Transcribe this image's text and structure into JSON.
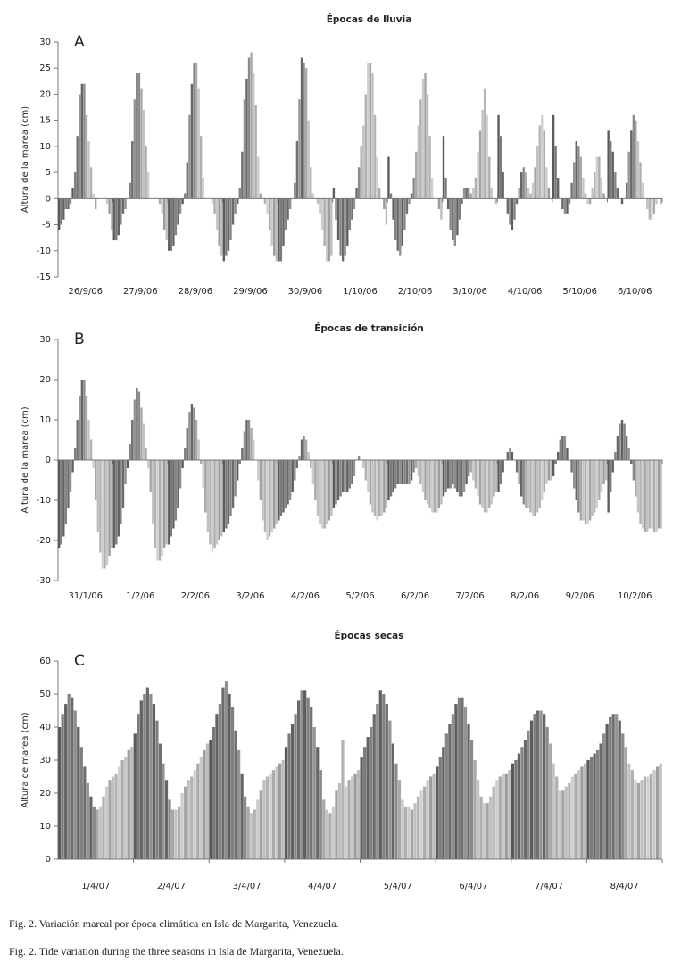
{
  "chart_data": [
    {
      "type": "grouped-bar",
      "title": "Épocas de lluvia",
      "panel_label": "A",
      "y_label": "Altura de la marea   (cm)",
      "categories": [
        "26/9/06",
        "27/9/06",
        "28/9/06",
        "29/9/06",
        "30/9/06",
        "1/10/06",
        "2/10/06",
        "3/10/06",
        "4/10/06",
        "5/10/06",
        "6/10/06"
      ],
      "values": [
        [
          -6,
          -5,
          -4,
          -2,
          -2,
          -1,
          2,
          5,
          12,
          20,
          22,
          22,
          16,
          11,
          6,
          1,
          -2,
          0,
          0,
          0,
          0,
          -1,
          -3,
          -6
        ],
        [
          -8,
          -8,
          -7,
          -5,
          -3,
          -2,
          0,
          3,
          11,
          19,
          24,
          24,
          21,
          17,
          10,
          5,
          0,
          0,
          0,
          0,
          -1,
          -3,
          -6,
          -8
        ],
        [
          -10,
          -10,
          -9,
          -7,
          -5,
          -3,
          -1,
          1,
          7,
          16,
          22,
          26,
          26,
          21,
          12,
          4,
          0,
          0,
          0,
          -1,
          -3,
          -6,
          -9,
          -11
        ],
        [
          -12,
          -11,
          -10,
          -8,
          -5,
          -3,
          -1,
          2,
          9,
          19,
          23,
          27,
          28,
          24,
          18,
          8,
          1,
          0,
          -1,
          -3,
          -6,
          -9,
          -11,
          -12
        ],
        [
          -12,
          -12,
          -9,
          -6,
          -4,
          -2,
          0,
          3,
          11,
          19,
          27,
          26,
          25,
          15,
          6,
          1,
          0,
          -1,
          -3,
          -6,
          -9,
          -12,
          -12,
          -11
        ],
        [
          2,
          -4,
          -8,
          -11,
          -12,
          -11,
          -9,
          -6,
          -4,
          -2,
          2,
          6,
          10,
          14,
          20,
          26,
          26,
          24,
          16,
          8,
          2,
          0,
          -2,
          -5
        ],
        [
          8,
          1,
          -4,
          -8,
          -10,
          -11,
          -9,
          -6,
          -3,
          -1,
          1,
          4,
          9,
          14,
          19,
          23,
          24,
          20,
          12,
          4,
          0,
          0,
          -2,
          -4
        ],
        [
          12,
          4,
          -2,
          -6,
          -8,
          -9,
          -7,
          -4,
          -1,
          2,
          2,
          2,
          1,
          2,
          4,
          9,
          13,
          17,
          21,
          16,
          8,
          2,
          0,
          -1
        ],
        [
          16,
          12,
          5,
          0,
          -3,
          -5,
          -6,
          -4,
          -1,
          2,
          5,
          6,
          5,
          2,
          1,
          3,
          6,
          10,
          14,
          16,
          13,
          6,
          2,
          0
        ],
        [
          16,
          10,
          4,
          0,
          -2,
          -3,
          -3,
          -1,
          3,
          7,
          11,
          10,
          8,
          4,
          1,
          -1,
          -1,
          2,
          5,
          8,
          8,
          4,
          1,
          0
        ],
        [
          13,
          11,
          9,
          5,
          2,
          0,
          -1,
          0,
          3,
          9,
          13,
          16,
          15,
          11,
          7,
          3,
          0,
          -2,
          -4,
          -4,
          -3,
          -1,
          0,
          -1
        ]
      ],
      "ylim": [
        -15,
        30
      ],
      "yticks": [
        -15,
        -10,
        -5,
        0,
        5,
        10,
        15,
        20,
        25,
        30
      ],
      "bar_colors": [
        "#5a5a5a",
        "#7a7a7a",
        "#626262",
        "#848484",
        "#6a6a6a",
        "#8e8e8e",
        "#5e5e5e",
        "#808080",
        "#707070",
        "#949494",
        "#666666",
        "#8a8a8a",
        "#a8a8a8",
        "#c4c4c4",
        "#b0b0b0",
        "#cccccc",
        "#a4a4a4",
        "#c0c0c0",
        "#b4b4b4",
        "#d0d0d0",
        "#acacac",
        "#c8c8c8",
        "#9c9c9c",
        "#bcbcbc"
      ]
    },
    {
      "type": "grouped-bar",
      "title": "Épocas de transición",
      "panel_label": "B",
      "y_label": "Altura de la marea (cm)",
      "categories": [
        "31/1/06",
        "1/2/06",
        "2/2/06",
        "3/2/06",
        "4/2/06",
        "5/2/06",
        "6/2/06",
        "7/2/06",
        "8/2/06",
        "9/2/06",
        "10/2/06"
      ],
      "values": [
        [
          -22,
          -21,
          -19,
          -16,
          -12,
          -8,
          -3,
          3,
          10,
          16,
          20,
          20,
          16,
          10,
          5,
          -2,
          -10,
          -18,
          -23,
          -27,
          -27,
          -26,
          -24,
          -22
        ],
        [
          -22,
          -21,
          -19,
          -16,
          -12,
          -6,
          -2,
          4,
          10,
          15,
          18,
          17,
          13,
          9,
          3,
          -2,
          -8,
          -16,
          -22,
          -25,
          -25,
          -24,
          -22,
          -21
        ],
        [
          -21,
          -19,
          -17,
          -15,
          -12,
          -7,
          -2,
          3,
          8,
          12,
          14,
          13,
          10,
          5,
          -1,
          -7,
          -13,
          -18,
          -21,
          -23,
          -22,
          -21,
          -20,
          -19
        ],
        [
          -18,
          -17,
          -16,
          -14,
          -12,
          -9,
          -5,
          -1,
          3,
          7,
          10,
          10,
          8,
          5,
          0,
          -5,
          -10,
          -15,
          -18,
          -20,
          -19,
          -18,
          -17,
          -16
        ],
        [
          -15,
          -14,
          -13,
          -12,
          -11,
          -10,
          -8,
          -5,
          -2,
          1,
          5,
          6,
          5,
          2,
          -2,
          -6,
          -10,
          -14,
          -16,
          -17,
          -17,
          -16,
          -15,
          -14
        ],
        [
          -12,
          -11,
          -10,
          -9,
          -8,
          -8,
          -8,
          -7,
          -6,
          -4,
          0,
          1,
          0,
          -2,
          -5,
          -8,
          -11,
          -13,
          -14,
          -15,
          -14,
          -14,
          -13,
          -12
        ],
        [
          -10,
          -9,
          -8,
          -7,
          -6,
          -6,
          -6,
          -6,
          -6,
          -6,
          -5,
          -3,
          -2,
          -4,
          -6,
          -8,
          -10,
          -11,
          -12,
          -13,
          -13,
          -13,
          -12,
          -11
        ],
        [
          -9,
          -8,
          -7,
          -7,
          -6,
          -7,
          -8,
          -9,
          -9,
          -8,
          -6,
          -4,
          -3,
          -5,
          -7,
          -9,
          -11,
          -12,
          -13,
          -13,
          -12,
          -11,
          -9,
          -8
        ],
        [
          -8,
          -6,
          -3,
          0,
          2,
          3,
          2,
          0,
          -3,
          -6,
          -9,
          -11,
          -12,
          -12,
          -13,
          -14,
          -14,
          -13,
          -12,
          -10,
          -8,
          -6,
          -5,
          -5
        ],
        [
          -4,
          -1,
          2,
          5,
          6,
          6,
          3,
          0,
          -3,
          -7,
          -10,
          -13,
          -15,
          -15,
          -16,
          -16,
          -15,
          -14,
          -13,
          -12,
          -10,
          -8,
          -6,
          -5
        ],
        [
          -13,
          -8,
          -3,
          2,
          6,
          9,
          10,
          9,
          6,
          3,
          -1,
          -5,
          -9,
          -13,
          -16,
          -17,
          -18,
          -18,
          -17,
          -17,
          -18,
          -18,
          -17,
          -17
        ]
      ],
      "ylim": [
        -30,
        30
      ],
      "yticks": [
        -30,
        -20,
        -10,
        0,
        10,
        20,
        30
      ],
      "bar_colors": [
        "#5a5a5a",
        "#7a7a7a",
        "#626262",
        "#848484",
        "#6a6a6a",
        "#8e8e8e",
        "#5e5e5e",
        "#808080",
        "#707070",
        "#949494",
        "#666666",
        "#8a8a8a",
        "#a8a8a8",
        "#c4c4c4",
        "#b0b0b0",
        "#cccccc",
        "#a4a4a4",
        "#c0c0c0",
        "#b4b4b4",
        "#d0d0d0",
        "#acacac",
        "#c8c8c8",
        "#9c9c9c",
        "#bcbcbc"
      ]
    },
    {
      "type": "grouped-bar",
      "title": "Épocas secas",
      "panel_label": "C",
      "y_label": "Altura de marea (cm)",
      "categories": [
        "1/4/07",
        "2/4/07",
        "3/4/07",
        "4/4/07",
        "5/4/07",
        "6/4/07",
        "7/4/07",
        "8/4/07"
      ],
      "values": [
        [
          40,
          44,
          47,
          50,
          49,
          45,
          40,
          34,
          28,
          23,
          19,
          16,
          15,
          16,
          19,
          22,
          24,
          25,
          26,
          28,
          30,
          31,
          33,
          34
        ],
        [
          38,
          44,
          48,
          50,
          52,
          50,
          47,
          42,
          35,
          29,
          24,
          18,
          15,
          15,
          16,
          20,
          22,
          24,
          25,
          27,
          29,
          31,
          33,
          35
        ],
        [
          36,
          40,
          44,
          47,
          52,
          54,
          50,
          46,
          39,
          33,
          26,
          19,
          16,
          14,
          15,
          18,
          21,
          24,
          25,
          26,
          27,
          28,
          29,
          30
        ],
        [
          34,
          38,
          41,
          44,
          48,
          51,
          51,
          49,
          46,
          40,
          34,
          27,
          18,
          15,
          14,
          16,
          21,
          23,
          36,
          22,
          24,
          25,
          26,
          27
        ],
        [
          31,
          34,
          37,
          40,
          44,
          47,
          51,
          50,
          47,
          42,
          35,
          29,
          24,
          18,
          16,
          16,
          15,
          17,
          19,
          21,
          22,
          24,
          25,
          26
        ],
        [
          28,
          31,
          34,
          38,
          41,
          44,
          47,
          49,
          49,
          46,
          41,
          36,
          30,
          24,
          19,
          17,
          17,
          19,
          22,
          24,
          25,
          26,
          26,
          27
        ],
        [
          29,
          30,
          32,
          34,
          36,
          39,
          42,
          44,
          45,
          45,
          44,
          40,
          35,
          29,
          25,
          21,
          21,
          22,
          23,
          25,
          26,
          27,
          28,
          29
        ],
        [
          30,
          31,
          32,
          33,
          35,
          38,
          41,
          43,
          44,
          44,
          42,
          38,
          34,
          29,
          27,
          24,
          23,
          24,
          25,
          25,
          26,
          27,
          28,
          29
        ]
      ],
      "ylim": [
        0,
        60
      ],
      "yticks": [
        0,
        10,
        20,
        30,
        40,
        50,
        60
      ],
      "bar_colors": [
        "#5a5a5a",
        "#7a7a7a",
        "#626262",
        "#848484",
        "#6a6a6a",
        "#8e8e8e",
        "#5e5e5e",
        "#808080",
        "#707070",
        "#949494",
        "#666666",
        "#8a8a8a",
        "#a8a8a8",
        "#c4c4c4",
        "#b0b0b0",
        "#cccccc",
        "#a4a4a4",
        "#c0c0c0",
        "#b4b4b4",
        "#d0d0d0",
        "#acacac",
        "#c8c8c8",
        "#9c9c9c",
        "#bcbcbc"
      ]
    }
  ],
  "captions": [
    "Fig. 2. Variación mareal por época climática en Isla de Margarita, Venezuela.",
    "Fig. 2. Tide variation during the three seasons in Isla de Margarita, Venezuela."
  ]
}
